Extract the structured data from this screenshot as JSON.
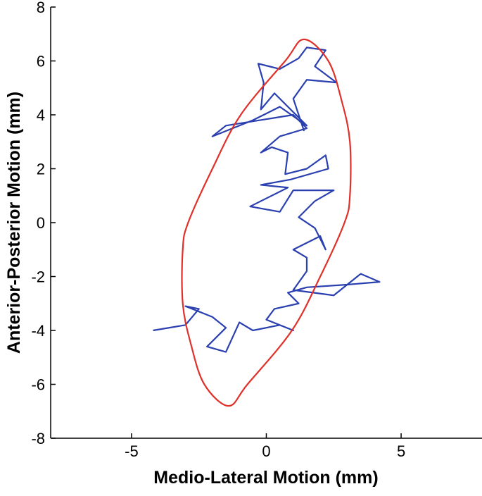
{
  "chart_data": {
    "type": "line",
    "xlabel": "Medio-Lateral Motion (mm)",
    "ylabel": "Anterior-Posterior Motion (mm)",
    "xlim": [
      -8,
      8
    ],
    "ylim": [
      -8,
      8
    ],
    "xticks": [
      -5,
      0,
      5
    ],
    "yticks": [
      -8,
      -6,
      -4,
      -2,
      0,
      2,
      4,
      6,
      8
    ],
    "series": [
      {
        "color": "#2a3fb0",
        "x": [
          -4.2,
          -3.0,
          -2.5,
          -3.0,
          -2.0,
          -1.5,
          -2.2,
          -1.5,
          -1.0,
          -0.5,
          0.5,
          1.0,
          0.0,
          0.3,
          1.2,
          0.8,
          1.5,
          3.0,
          4.2,
          3.5,
          2.5,
          1.0,
          1.5,
          1.5,
          1.0,
          2.0,
          2.2,
          1.8,
          1.2,
          1.8,
          2.5,
          1.0,
          0.5,
          -0.6,
          0.8,
          -0.2,
          0.9,
          2.3,
          2.2,
          1.5,
          0.7,
          0.8,
          0.2,
          -0.2,
          0.5,
          1.5,
          1.0,
          -1.5,
          -2.0,
          -0.5,
          0.5,
          1.5,
          0.3,
          -0.2,
          -0.1,
          -0.3,
          0.5,
          1.2,
          1.5,
          2.2,
          1.8,
          2.6,
          1.5,
          1.0,
          1.4
        ],
        "y": [
          -4.0,
          -3.8,
          -3.2,
          -3.1,
          -3.5,
          -3.9,
          -4.6,
          -4.8,
          -3.7,
          -4.0,
          -3.8,
          -4.0,
          -3.6,
          -3.2,
          -3.0,
          -2.6,
          -2.4,
          -2.3,
          -2.2,
          -1.9,
          -2.7,
          -2.5,
          -1.8,
          -1.3,
          -1.0,
          -0.5,
          -1.0,
          -0.2,
          0.2,
          0.8,
          1.2,
          1.2,
          0.4,
          0.6,
          1.3,
          1.4,
          1.6,
          2.0,
          2.5,
          2.0,
          1.8,
          2.6,
          2.8,
          2.6,
          3.2,
          3.5,
          4.0,
          3.6,
          3.2,
          3.8,
          4.3,
          3.6,
          4.8,
          4.2,
          5.2,
          5.9,
          5.7,
          6.1,
          6.5,
          6.4,
          5.8,
          5.2,
          5.3,
          4.6,
          3.4
        ]
      },
      {
        "color": "#e0302a",
        "x": [
          1.4,
          2.3,
          2.8,
          3.1,
          3.1,
          2.9,
          2.0,
          0.95,
          -0.7,
          -1.4,
          -2.3,
          -2.8,
          -3.1,
          -3.1,
          -2.9,
          -2.0,
          -0.95,
          0.7,
          1.4
        ],
        "y": [
          6.8,
          6.0,
          4.5,
          3.0,
          1.0,
          0,
          -2,
          -4,
          -6,
          -6.8,
          -6.0,
          -4.5,
          -3.0,
          -1.0,
          0,
          2,
          4,
          6,
          6.8
        ]
      }
    ]
  }
}
